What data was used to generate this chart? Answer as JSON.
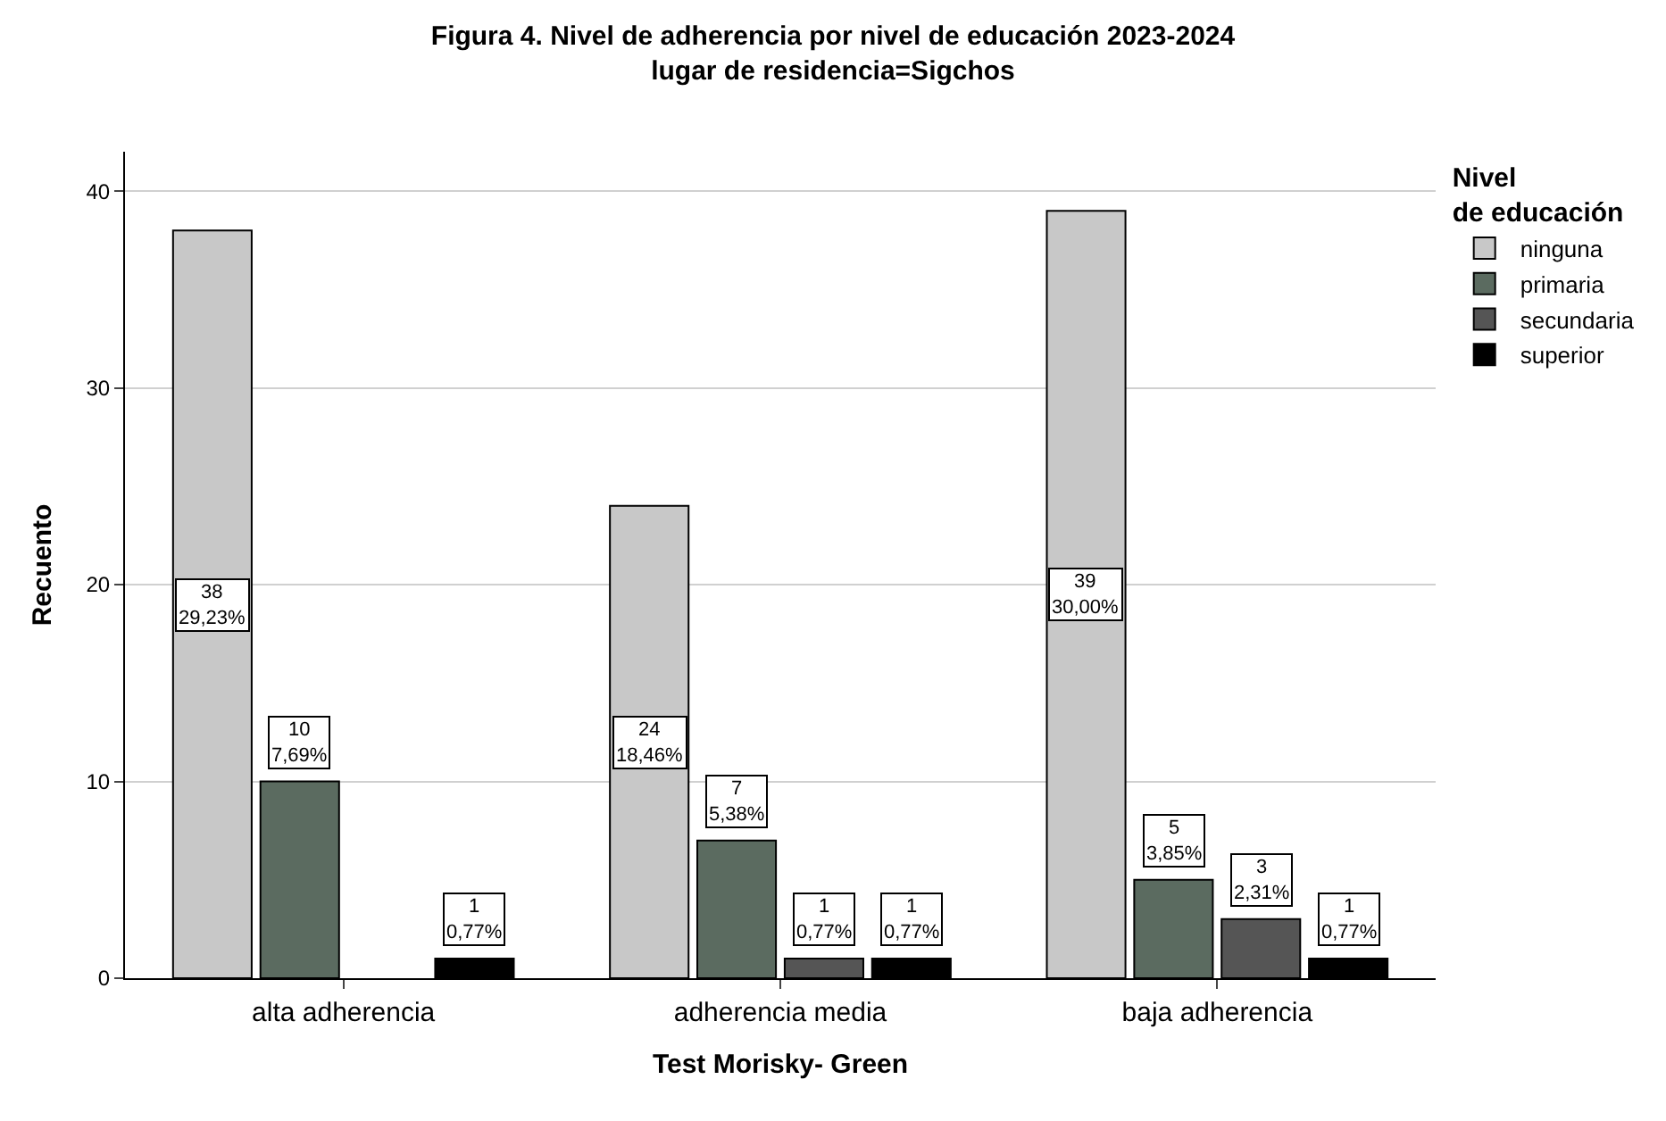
{
  "chart_data": {
    "type": "bar",
    "title": "Figura 4. Nivel de adherencia por nivel de educación 2023-2024",
    "subtitle": "lugar de residencia=Sigchos",
    "xlabel": "Test Morisky- Green",
    "ylabel": "Recuento",
    "legend_title": "Nivel de educación",
    "categories": [
      "alta adherencia",
      "adherencia media",
      "baja adherencia"
    ],
    "series": [
      {
        "name": "ninguna",
        "color": "#c8c8c8",
        "values": [
          38,
          24,
          39
        ],
        "value_labels": [
          "38\n29,23%",
          "24\n18,46%",
          "39\n30,00%"
        ]
      },
      {
        "name": "primaria",
        "color": "#5b6b60",
        "values": [
          10,
          7,
          5
        ],
        "value_labels": [
          "10\n7,69%",
          "7\n5,38%",
          "5\n3,85%"
        ]
      },
      {
        "name": "secundaria",
        "color": "#555555",
        "values": [
          null,
          1,
          3
        ],
        "value_labels": [
          null,
          "1\n0,77%",
          "3\n2,31%"
        ]
      },
      {
        "name": "superior",
        "color": "#000000",
        "values": [
          1,
          1,
          1
        ],
        "value_labels": [
          "1\n0,77%",
          "1\n0,77%",
          "1\n0,77%"
        ]
      }
    ],
    "ylim": [
      0,
      42
    ],
    "yticks": [
      0,
      10,
      20,
      30,
      40
    ],
    "grid": "y",
    "legend": "right"
  }
}
